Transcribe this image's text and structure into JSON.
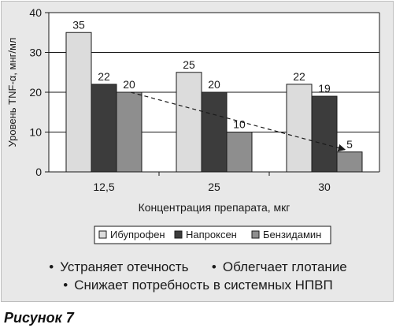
{
  "chart_data": {
    "type": "bar",
    "categories": [
      "12,5",
      "25",
      "30"
    ],
    "series": [
      {
        "name": "Ибупрофен",
        "values": [
          35,
          25,
          22
        ],
        "color": "#dcdcdc"
      },
      {
        "name": "Напроксен",
        "values": [
          22,
          20,
          19
        ],
        "color": "#3c3c3c"
      },
      {
        "name": "Бензидамин",
        "values": [
          20,
          10,
          5
        ],
        "color": "#8e8e8e"
      }
    ],
    "data_labels": [
      [
        "35",
        "22",
        "20"
      ],
      [
        "25",
        "20",
        "10"
      ],
      [
        "22",
        "19",
        "5"
      ]
    ],
    "yticks": [
      "0",
      "10",
      "20",
      "30",
      "40"
    ],
    "ylim": [
      0,
      40
    ],
    "ylabel": "Уровень TNF-α, мнг/мл",
    "xlabel": "Концентрация препарата, мкг",
    "grid": true,
    "legend_position": "bottom",
    "trend_line": {
      "series": "Бензидамин",
      "from": [
        0,
        20
      ],
      "to": [
        2,
        5
      ],
      "style": "dashed arrow"
    }
  },
  "bullets": {
    "item1": "Устраняет отечность",
    "item2": "Облегчает глотание",
    "item3": "Снижает потребность в системных НПВП",
    "bullet_char": "•"
  },
  "caption": "Рисунок 7"
}
